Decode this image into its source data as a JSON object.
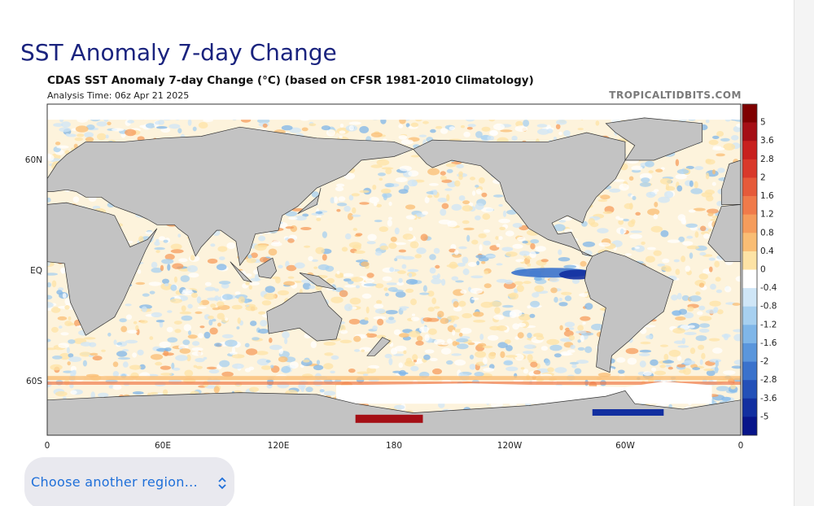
{
  "header": {
    "title": "SST Anomaly 7-day Change",
    "subtitle": "CDAS SST Anomaly 7-day Change (°C) (based on CFSR 1981-2010 Climatology)",
    "analysis_time": "Analysis Time: 06z Apr 21 2025",
    "credit": "TROPICALTIDBITS.COM"
  },
  "map": {
    "lat_labels": [
      "60N",
      "EQ",
      "60S"
    ],
    "lon_labels": [
      "0",
      "60E",
      "120E",
      "180",
      "120W",
      "60W",
      "0"
    ],
    "colorbar": {
      "labels": [
        "5",
        "3.6",
        "2.8",
        "2",
        "1.6",
        "1.2",
        "0.8",
        "0.4",
        "0",
        "-0.4",
        "-0.8",
        "-1.2",
        "-1.6",
        "-2",
        "-2.8",
        "-3.6",
        "-5"
      ],
      "colors": [
        "#7f0000",
        "#a50f15",
        "#c8201e",
        "#d9392b",
        "#e65a3a",
        "#f07a4a",
        "#f59c5c",
        "#f9bd74",
        "#fde3a5",
        "#ffffff",
        "#cfe6f7",
        "#a7d0f0",
        "#7fb6e8",
        "#5a96dc",
        "#3a72cc",
        "#2350b8",
        "#122fa0",
        "#08158a"
      ]
    }
  },
  "button": {
    "label": "Choose another region..."
  }
}
